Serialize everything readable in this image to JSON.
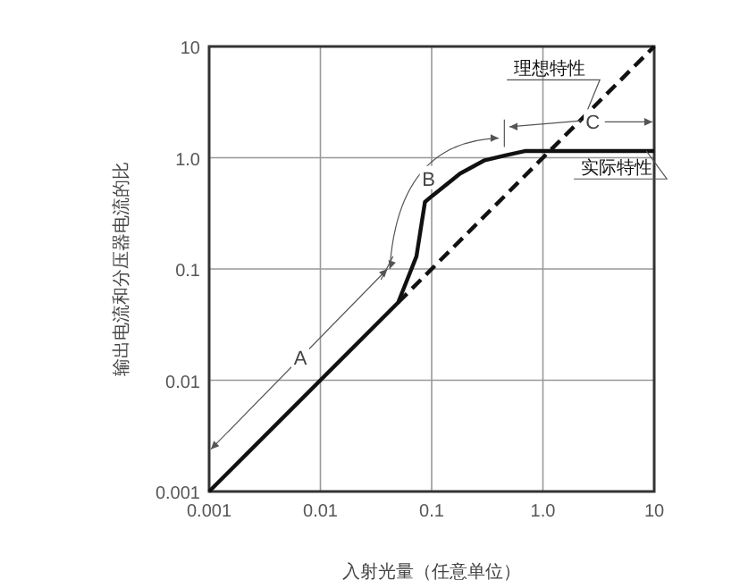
{
  "chart_data": {
    "type": "line",
    "log": "xy",
    "xlabel": "入射光量（任意单位）",
    "ylabel": "输出电流和分压器电流的比",
    "xlim": [
      0.001,
      10
    ],
    "ylim": [
      0.001,
      10
    ],
    "xticks": [
      0.001,
      0.01,
      0.1,
      {
        "value": 1,
        "label": "1.0"
      },
      10
    ],
    "yticks": [
      0.001,
      0.01,
      0.1,
      {
        "value": 1,
        "label": "1.0"
      },
      10
    ],
    "grid": true,
    "series": [
      {
        "name": "实际特性",
        "color": "#111111",
        "line_style": "solid",
        "x": [
          0.001,
          0.05,
          0.073,
          0.087,
          0.1,
          0.18,
          0.3,
          0.46,
          0.7,
          1,
          10
        ],
        "values": [
          0.001,
          0.05,
          0.13,
          0.4,
          0.45,
          0.72,
          0.95,
          1.05,
          1.15,
          1.15,
          1.15
        ]
      },
      {
        "name": "理想特性",
        "color": "#111111",
        "line_style": "dashed",
        "x": [
          0.05,
          10
        ],
        "values": [
          0.05,
          10
        ]
      }
    ],
    "annotations": [
      {
        "text": "A",
        "x": 0.0066,
        "y": 0.016
      },
      {
        "text": "B",
        "x": 0.094,
        "y": 0.65
      },
      {
        "text": "C",
        "x": 2.8,
        "y": 2.1
      }
    ]
  }
}
